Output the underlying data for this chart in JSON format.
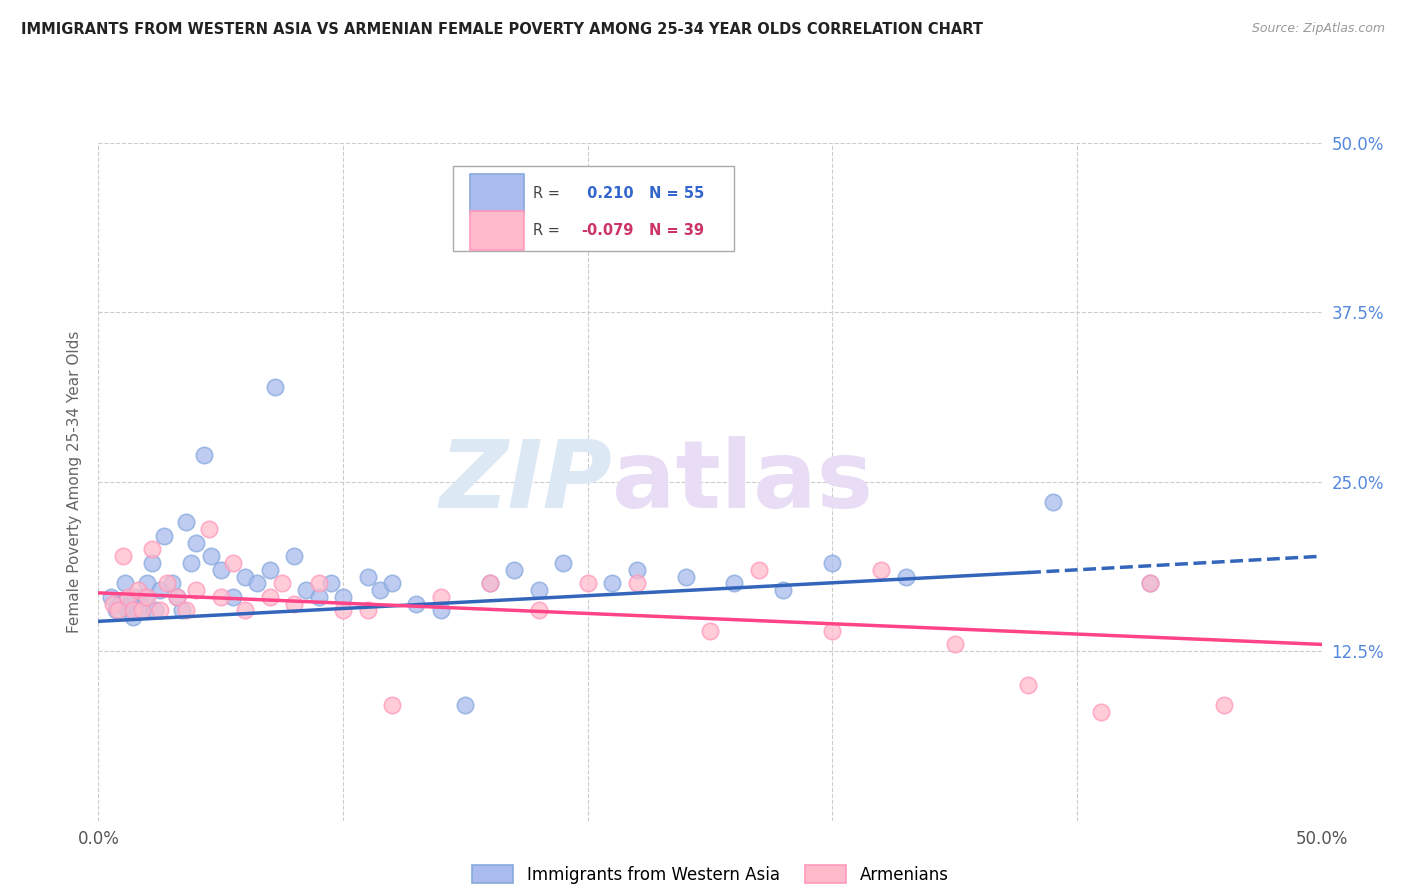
{
  "title": "IMMIGRANTS FROM WESTERN ASIA VS ARMENIAN FEMALE POVERTY AMONG 25-34 YEAR OLDS CORRELATION CHART",
  "source": "Source: ZipAtlas.com",
  "ylabel": "Female Poverty Among 25-34 Year Olds",
  "xlim": [
    0.0,
    0.5
  ],
  "ylim": [
    0.0,
    0.5
  ],
  "x_ticks": [
    0.0,
    0.1,
    0.2,
    0.3,
    0.4,
    0.5
  ],
  "x_tick_labels": [
    "0.0%",
    "",
    "",
    "",
    "",
    "50.0%"
  ],
  "y_tick_values": [
    0.125,
    0.25,
    0.375,
    0.5
  ],
  "y_tick_labels": [
    "12.5%",
    "25.0%",
    "37.5%",
    "50.0%"
  ],
  "grid_color": "#cccccc",
  "background_color": "#ffffff",
  "watermark_zip": "ZIP",
  "watermark_atlas": "atlas",
  "series": [
    {
      "name": "Immigrants from Western Asia",
      "face_color": "#aabbee",
      "edge_color": "#88aadd",
      "r": 0.21,
      "n": 55,
      "x": [
        0.005,
        0.007,
        0.009,
        0.011,
        0.012,
        0.013,
        0.014,
        0.015,
        0.016,
        0.017,
        0.018,
        0.019,
        0.02,
        0.022,
        0.023,
        0.025,
        0.027,
        0.03,
        0.032,
        0.034,
        0.036,
        0.038,
        0.04,
        0.043,
        0.046,
        0.05,
        0.055,
        0.06,
        0.065,
        0.07,
        0.072,
        0.08,
        0.085,
        0.09,
        0.095,
        0.1,
        0.11,
        0.115,
        0.12,
        0.13,
        0.14,
        0.15,
        0.16,
        0.17,
        0.18,
        0.19,
        0.21,
        0.22,
        0.24,
        0.26,
        0.28,
        0.3,
        0.33,
        0.39,
        0.43
      ],
      "y": [
        0.165,
        0.155,
        0.16,
        0.175,
        0.155,
        0.16,
        0.15,
        0.165,
        0.155,
        0.16,
        0.155,
        0.165,
        0.175,
        0.19,
        0.155,
        0.17,
        0.21,
        0.175,
        0.165,
        0.155,
        0.22,
        0.19,
        0.205,
        0.27,
        0.195,
        0.185,
        0.165,
        0.18,
        0.175,
        0.185,
        0.32,
        0.195,
        0.17,
        0.165,
        0.175,
        0.165,
        0.18,
        0.17,
        0.175,
        0.16,
        0.155,
        0.085,
        0.175,
        0.185,
        0.17,
        0.19,
        0.175,
        0.185,
        0.18,
        0.175,
        0.17,
        0.19,
        0.18,
        0.235,
        0.175
      ]
    },
    {
      "name": "Armenians",
      "face_color": "#ffbbcc",
      "edge_color": "#ff99bb",
      "r": -0.079,
      "n": 39,
      "x": [
        0.006,
        0.008,
        0.01,
        0.012,
        0.014,
        0.016,
        0.018,
        0.02,
        0.022,
        0.025,
        0.028,
        0.032,
        0.036,
        0.04,
        0.045,
        0.05,
        0.055,
        0.06,
        0.07,
        0.075,
        0.08,
        0.09,
        0.1,
        0.11,
        0.12,
        0.14,
        0.16,
        0.18,
        0.2,
        0.22,
        0.25,
        0.27,
        0.3,
        0.32,
        0.35,
        0.38,
        0.41,
        0.43,
        0.46
      ],
      "y": [
        0.16,
        0.155,
        0.195,
        0.165,
        0.155,
        0.17,
        0.155,
        0.165,
        0.2,
        0.155,
        0.175,
        0.165,
        0.155,
        0.17,
        0.215,
        0.165,
        0.19,
        0.155,
        0.165,
        0.175,
        0.16,
        0.175,
        0.155,
        0.155,
        0.085,
        0.165,
        0.175,
        0.155,
        0.175,
        0.175,
        0.14,
        0.185,
        0.14,
        0.185,
        0.13,
        0.1,
        0.08,
        0.175,
        0.085
      ]
    }
  ],
  "trend_line_blue_solid": {
    "x_start": 0.0,
    "x_end": 0.38,
    "y_start": 0.147,
    "y_end": 0.183
  },
  "trend_line_blue_dash": {
    "x_start": 0.38,
    "x_end": 0.5,
    "y_start": 0.183,
    "y_end": 0.195
  },
  "trend_line_pink": {
    "x_start": 0.0,
    "x_end": 0.5,
    "y_start": 0.168,
    "y_end": 0.13
  },
  "legend_box": {
    "r_blue": 0.21,
    "n_blue": 55,
    "r_pink": -0.079,
    "n_pink": 39
  }
}
